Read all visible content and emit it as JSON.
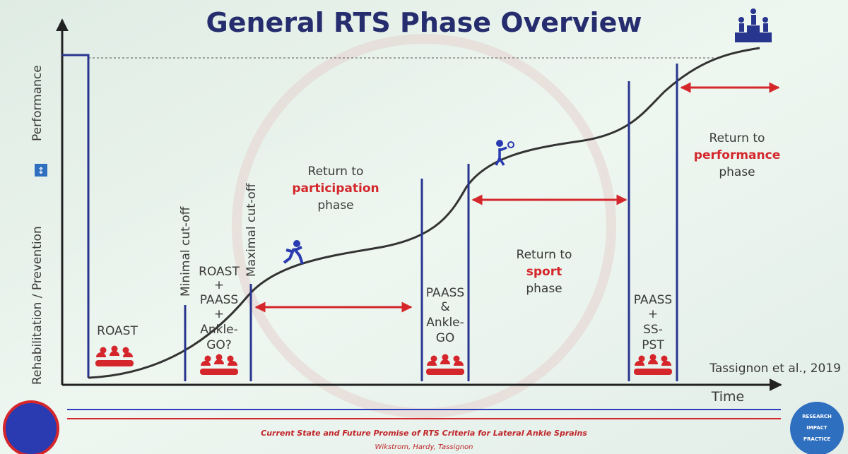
{
  "title": "General RTS Phase Overview",
  "y_axis": {
    "lower": "Rehabilitation / Prevention",
    "icon": "↕",
    "upper": "Performance"
  },
  "x_axis": "Time",
  "cutoffs": [
    "Minimal cut-off",
    "Maximal cut-off"
  ],
  "assessments": [
    {
      "lines": [
        "ROAST"
      ]
    },
    {
      "lines": [
        "ROAST",
        "+",
        "PAASS",
        "+",
        "Ankle-",
        "GO?"
      ]
    },
    {
      "lines": [
        "PAASS",
        "&",
        "Ankle-",
        "GO"
      ]
    },
    {
      "lines": [
        "PAASS",
        "+",
        "SS-",
        "PST"
      ]
    }
  ],
  "phases": [
    {
      "lines": [
        "Return to",
        "participation",
        "phase"
      ]
    },
    {
      "lines": [
        "Return to",
        "sport",
        "phase"
      ]
    },
    {
      "lines": [
        "Return to",
        "performance",
        "phase"
      ]
    }
  ],
  "citation": "Tassignon et al., 2019",
  "footer": {
    "title": "Current State and Future Promise of RTS Criteria for Lateral Ankle Sprains",
    "authors": "Wikstrom, Hardy, Tassignon"
  },
  "badge": {
    "lines": [
      "RESEARCH",
      "IMPACT",
      "PRACTICE"
    ]
  }
}
